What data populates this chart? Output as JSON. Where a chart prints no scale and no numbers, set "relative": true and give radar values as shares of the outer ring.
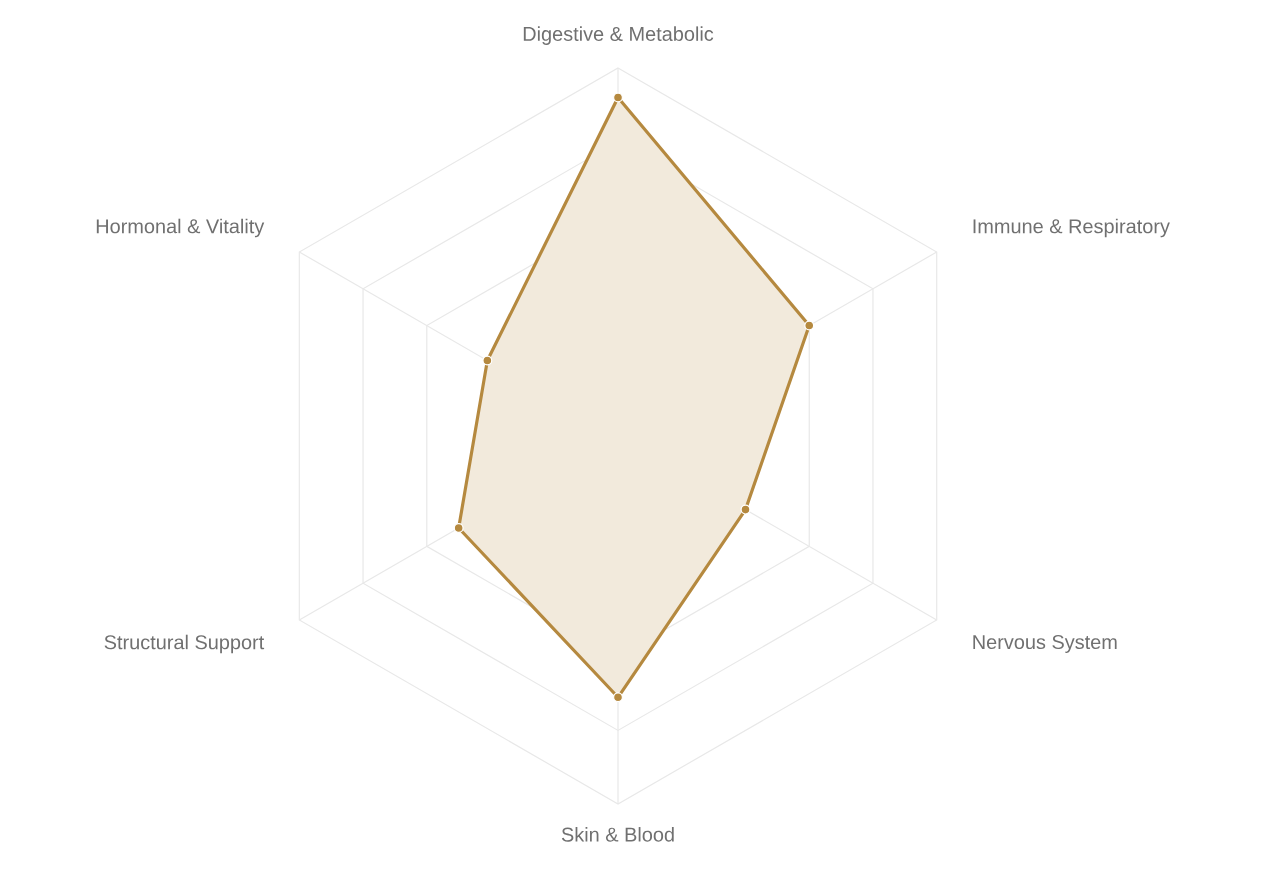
{
  "chart_data": {
    "type": "radar",
    "relative": true,
    "grid": true,
    "marker": "circle",
    "line_style": "solid",
    "categories": [
      "Digestive & Metabolic",
      "Immune & Respiratory",
      "Nervous System",
      "Skin & Blood",
      "Structural Support",
      "Hormonal & Vitality"
    ],
    "series": [
      {
        "color": "#b5893f",
        "values": [
          0.92,
          0.6,
          0.4,
          0.71,
          0.5,
          0.41
        ]
      }
    ]
  }
}
